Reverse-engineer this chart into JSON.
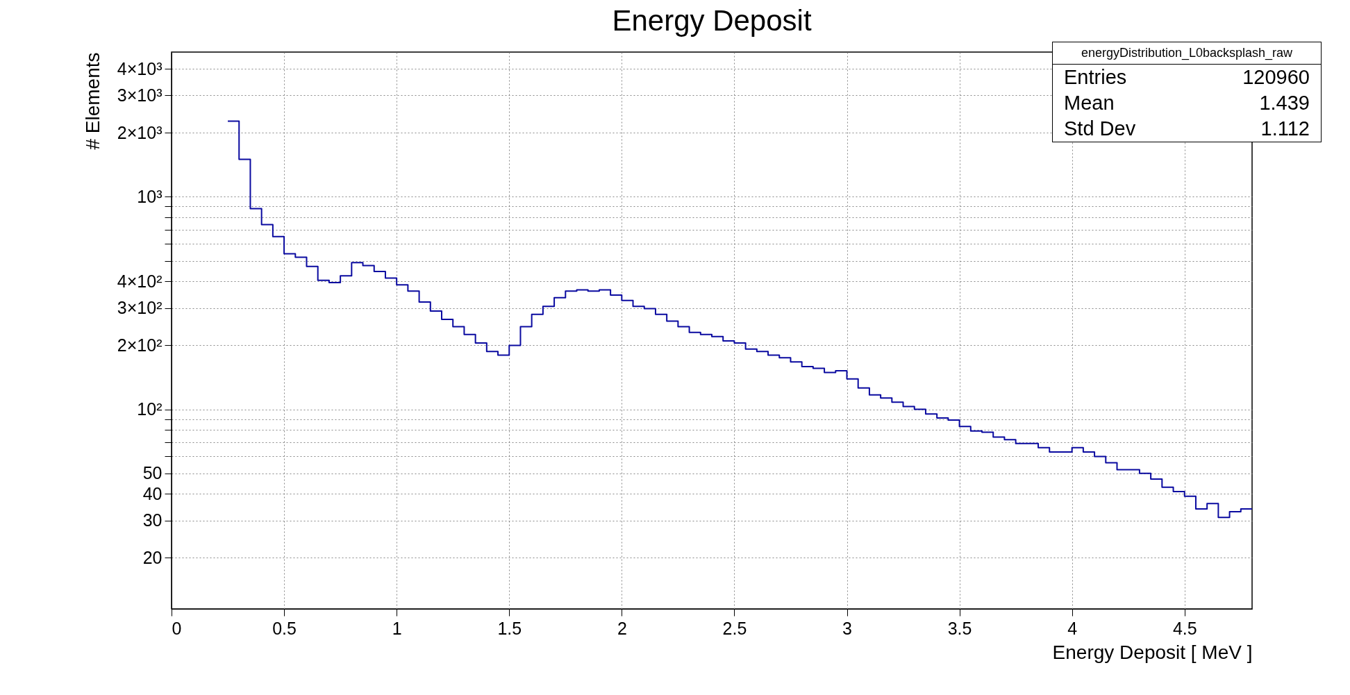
{
  "chart_data": {
    "type": "histogram",
    "title": "Energy Deposit",
    "xlabel": "Energy Deposit [ MeV ]",
    "ylabel": "# Elements",
    "bins": [
      0.25,
      0.3,
      0.35,
      0.4,
      0.45,
      0.5,
      0.55,
      0.6,
      0.65,
      0.7,
      0.75,
      0.8,
      0.85,
      0.9,
      0.95,
      1.0,
      1.05,
      1.1,
      1.15,
      1.2,
      1.25,
      1.3,
      1.35,
      1.4,
      1.45,
      1.5,
      1.55,
      1.6,
      1.65,
      1.7,
      1.75,
      1.8,
      1.85,
      1.9,
      1.95,
      2.0,
      2.05,
      2.1,
      2.15,
      2.2,
      2.25,
      2.3,
      2.35,
      2.4,
      2.45,
      2.5,
      2.55,
      2.6,
      2.65,
      2.7,
      2.75,
      2.8,
      2.85,
      2.9,
      2.95,
      3.0,
      3.05,
      3.1,
      3.15,
      3.2,
      3.25,
      3.3,
      3.35,
      3.4,
      3.45,
      3.5,
      3.55,
      3.6,
      3.65,
      3.7,
      3.75,
      3.8,
      3.85,
      3.9,
      3.95,
      4.0,
      4.05,
      4.1,
      4.15,
      4.2,
      4.25,
      4.3,
      4.35,
      4.4,
      4.45,
      4.5,
      4.55,
      4.6,
      4.65,
      4.7,
      4.75,
      4.8
    ],
    "values": [
      2270,
      1500,
      880,
      740,
      650,
      540,
      520,
      470,
      405,
      395,
      425,
      490,
      475,
      445,
      415,
      385,
      360,
      320,
      290,
      265,
      245,
      225,
      205,
      187,
      180,
      200,
      245,
      280,
      305,
      335,
      360,
      365,
      360,
      365,
      345,
      325,
      305,
      298,
      280,
      260,
      245,
      230,
      225,
      220,
      210,
      205,
      192,
      187,
      180,
      175,
      167,
      159,
      156,
      149,
      152,
      139,
      126,
      117,
      113,
      108,
      103,
      100,
      95,
      91,
      89,
      83,
      79,
      78,
      74,
      72,
      69,
      69,
      66,
      63,
      63,
      66,
      63,
      60,
      56,
      52,
      52,
      50,
      47,
      43,
      41,
      39,
      34,
      36,
      31,
      33,
      34
    ],
    "color": "#0a0aa0",
    "xlim": [
      0,
      4.8
    ],
    "xticks": [
      0,
      0.5,
      1,
      1.5,
      2,
      2.5,
      3,
      3.5,
      4,
      4.5
    ],
    "ylim": [
      11.5,
      4800
    ],
    "log": true,
    "yticks": [
      20,
      30,
      40,
      50,
      {
        "value": 60,
        "label": null
      },
      {
        "value": 70,
        "label": null
      },
      {
        "value": 80,
        "label": null
      },
      {
        "value": 90,
        "label": null
      },
      {
        "value": 100,
        "label": "10²"
      },
      {
        "value": 200,
        "label": "2×10²"
      },
      {
        "value": 300,
        "label": "3×10²"
      },
      {
        "value": 400,
        "label": "4×10²"
      },
      {
        "value": 500,
        "label": null
      },
      {
        "value": 600,
        "label": null
      },
      {
        "value": 700,
        "label": null
      },
      {
        "value": 800,
        "label": null
      },
      {
        "value": 900,
        "label": null
      },
      {
        "value": 1000,
        "label": "10³"
      },
      {
        "value": 2000,
        "label": "2×10³"
      },
      {
        "value": 3000,
        "label": "3×10³"
      },
      {
        "value": 4000,
        "label": "4×10³"
      }
    ],
    "grid": true,
    "annotations": [
      "energyDistribution_L0backsplash_raw",
      "Entries 120960",
      "Mean 1.439",
      "Std Dev 1.112"
    ]
  }
}
